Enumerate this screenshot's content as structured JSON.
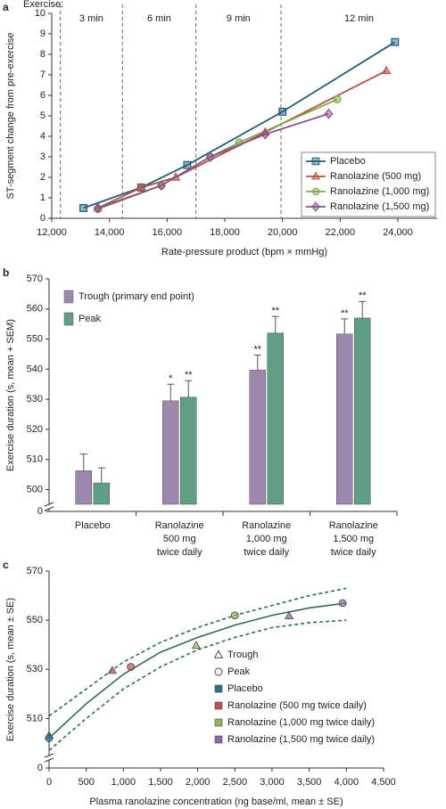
{
  "chart_data": [
    {
      "type": "line",
      "panel": "a",
      "xlabel": "Rate-pressure product (bpm × mmHg)",
      "ylabel": "ST-segment change from pre-exercise",
      "xlim": [
        12000,
        25360
      ],
      "ylim": [
        0,
        10
      ],
      "xticks": [
        {
          "value": 12000,
          "label": "12,000"
        },
        {
          "value": 14000,
          "label": "14,000"
        },
        {
          "value": 16000,
          "label": "16,000"
        },
        {
          "value": 18000,
          "label": "18,000"
        },
        {
          "value": 20000,
          "label": "20,000"
        },
        {
          "value": 22000,
          "label": "22,000"
        },
        {
          "value": 24000,
          "label": "24,000"
        }
      ],
      "yticks": [
        0,
        1,
        2,
        3,
        4,
        5,
        6,
        7,
        8,
        9,
        10
      ],
      "stage_title": "Exercise:",
      "stages": [
        "3 min",
        "6 min",
        "9 min",
        "12 min"
      ],
      "stage_boundaries": [
        12300,
        14450,
        17000,
        19950
      ],
      "legend": "lower right",
      "series": [
        {
          "name": "Placebo",
          "color": "#1f5f7a",
          "marker": "square",
          "x": [
            13100,
            15100,
            16700,
            20000,
            23900
          ],
          "values": [
            0.5,
            1.5,
            2.6,
            5.2,
            8.6
          ]
        },
        {
          "name": "Ranolazine (500 mg)",
          "color": "#b5523f",
          "marker": "triangle",
          "x": [
            13600,
            15100,
            16300,
            19400,
            23600
          ],
          "values": [
            0.5,
            1.5,
            2.0,
            4.2,
            7.2
          ]
        },
        {
          "name": "Ranolazine (1,000 mg)",
          "color": "#7fa84a",
          "marker": "circle",
          "x": [
            13600,
            15800,
            17500,
            18500,
            21900
          ],
          "values": [
            0.45,
            1.6,
            3.0,
            3.7,
            5.8
          ]
        },
        {
          "name": "Ranolazine (1,500 mg)",
          "color": "#8b4d87",
          "marker": "diamond",
          "x": [
            13600,
            15800,
            17500,
            19400,
            21600
          ],
          "values": [
            0.5,
            1.6,
            3.0,
            4.1,
            5.1
          ]
        }
      ]
    },
    {
      "type": "bar",
      "panel": "b",
      "ylabel": "Exercise duration (s, mean + SEM)",
      "ylim": [
        496,
        570
      ],
      "yticks": [
        500,
        510,
        520,
        530,
        540,
        550,
        560,
        570
      ],
      "y_origin": 0,
      "categories": [
        [
          "Placebo"
        ],
        [
          "Ranolazine",
          "500 mg",
          "twice daily"
        ],
        [
          "Ranolazine",
          "1,000 mg",
          "twice daily"
        ],
        [
          "Ranolazine",
          "1,500 mg",
          "twice daily"
        ]
      ],
      "legend": "upper left",
      "series": [
        {
          "name": "Trough (primary end point)",
          "color": "#9d88ad",
          "values": [
            506.3,
            529.5,
            539.7,
            551.7
          ],
          "errors": [
            5.5,
            5.5,
            5,
            5
          ],
          "annotations": [
            null,
            "*",
            "**",
            "**"
          ]
        },
        {
          "name": "Peak",
          "color": "#5f9d84",
          "values": [
            502.2,
            530.7,
            552,
            557
          ],
          "errors": [
            5,
            5.5,
            5.5,
            5.5
          ],
          "annotations": [
            null,
            "**",
            "**",
            "**"
          ]
        }
      ]
    },
    {
      "type": "scatter",
      "panel": "c",
      "xlabel": "Plasma ranolazine concentration (ng base/ml, mean ± SE)",
      "ylabel": "Exercise duration (s, mean ± SE)",
      "xlim": [
        0,
        4500
      ],
      "ylim": [
        496,
        570
      ],
      "xticks": [
        0,
        500,
        {
          "value": 1000,
          "label": "1,000"
        },
        {
          "value": 1500,
          "label": "1,500"
        },
        {
          "value": 2000,
          "label": "2,000"
        },
        {
          "value": 2500,
          "label": "2,500"
        },
        {
          "value": 3000,
          "label": "3,000"
        },
        {
          "value": 3500,
          "label": "3,500"
        },
        {
          "value": 4000,
          "label": "4,000"
        },
        {
          "value": 4500,
          "label": "4,500"
        }
      ],
      "yticks": [
        510,
        530,
        550,
        570
      ],
      "y_origin": 0,
      "legend": "lower right",
      "series": [
        {
          "name": "Trough",
          "marker": "triangle",
          "x": [
            0,
            850,
            1980,
            3230
          ],
          "values": [
            503,
            529.5,
            539.7,
            551.7
          ]
        },
        {
          "name": "Peak",
          "marker": "circle",
          "x": [
            0,
            1100,
            2500,
            3950
          ],
          "values": [
            502,
            531,
            552,
            557
          ]
        }
      ],
      "groups": [
        {
          "name": "Placebo",
          "color": "#2a6f9a"
        },
        {
          "name": "Ranolazine (500 mg twice daily)",
          "color": "#c0504d"
        },
        {
          "name": "Ranolazine (1,000 mg twice daily)",
          "color": "#8fb35a"
        },
        {
          "name": "Ranolazine (1,500 mg twice daily)",
          "color": "#8e6aa8"
        }
      ],
      "curve_color": "#2e6b5e",
      "curves": [
        {
          "style": "solid",
          "x": [
            0,
            500,
            1000,
            1500,
            2000,
            2500,
            3000,
            3500,
            4000
          ],
          "values": [
            502,
            516,
            528,
            537,
            543,
            548,
            552,
            555,
            557
          ]
        },
        {
          "style": "dashed",
          "x": [
            0,
            500,
            1000,
            1500,
            2000,
            2500,
            3000,
            3500,
            4000
          ],
          "values": [
            511,
            522,
            533,
            541,
            547,
            552,
            556,
            560,
            563
          ]
        },
        {
          "style": "dashed",
          "x": [
            0,
            500,
            1000,
            1500,
            2000,
            2500,
            3000,
            3500,
            4000
          ],
          "values": [
            497,
            510,
            522,
            531,
            538,
            543,
            547,
            549,
            550
          ]
        }
      ]
    }
  ]
}
